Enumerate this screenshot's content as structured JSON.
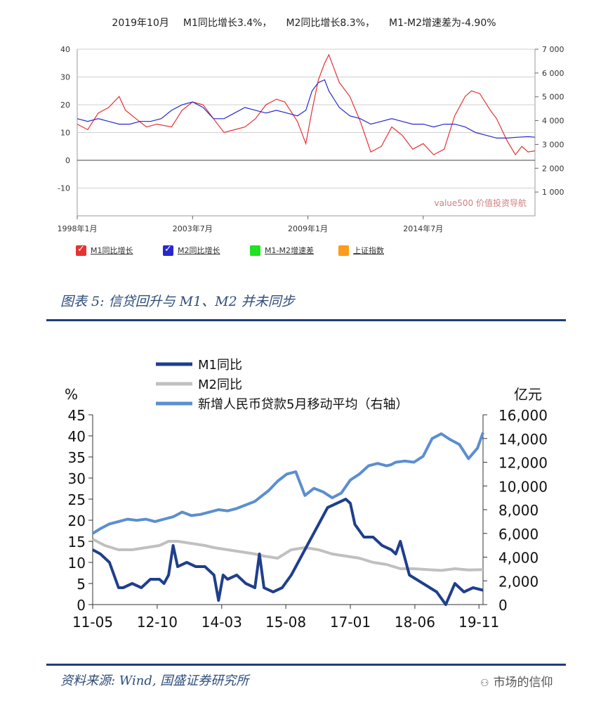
{
  "chart1_header": {
    "month": "2019年10月",
    "m1": "M1同比增长3.4%，",
    "m2": "M2同比增长8.3%，",
    "gap": "M1-M2增速差为-4.90%"
  },
  "legend1": {
    "items": [
      {
        "label": "M1同比增长",
        "color": "#e53232",
        "checked": true
      },
      {
        "label": "M2同比增长",
        "color": "#2828d0",
        "checked": true
      },
      {
        "label": "M1-M2增速差",
        "color": "#22e022",
        "checked": false
      },
      {
        "label": "上证指数",
        "color": "#ff9a1a",
        "checked": false
      }
    ]
  },
  "chart1_watermark": "value500 价值投资导航",
  "figure_title": "图表 5:  信贷回升与 M1、M2 并未同步",
  "source": "资料来源:  Wind, 国盛证券研究所",
  "footer_watermark": "市场的信仰",
  "chart_data": [
    {
      "type": "line",
      "title": "",
      "x_ticks": [
        "1998年1月",
        "2003年7月",
        "2009年1月",
        "2014年7月"
      ],
      "x_range": [
        1998.0,
        2019.83
      ],
      "ylim": [
        -20,
        40
      ],
      "y_ticks": [
        -10,
        0,
        10,
        20,
        30,
        40
      ],
      "ylim_right": [
        0,
        7000
      ],
      "y_ticks_right": [
        "1 000",
        "2 000",
        "3 000",
        "4 000",
        "5 000",
        "6 000",
        "7 000"
      ],
      "grid": true,
      "series": [
        {
          "name": "M1同比增长",
          "color": "#e53232",
          "x": [
            1998.0,
            1998.5,
            1999.0,
            1999.5,
            2000.0,
            2000.3,
            2000.8,
            2001.3,
            2001.8,
            2002.5,
            2003.0,
            2003.5,
            2004.0,
            2004.5,
            2005.0,
            2005.5,
            2006.0,
            2006.5,
            2007.0,
            2007.5,
            2007.9,
            2008.5,
            2008.9,
            2009.2,
            2009.5,
            2009.8,
            2010.0,
            2010.5,
            2011.0,
            2011.5,
            2012.0,
            2012.5,
            2013.0,
            2013.5,
            2014.0,
            2014.5,
            2015.0,
            2015.5,
            2016.0,
            2016.5,
            2016.8,
            2017.2,
            2017.7,
            2018.0,
            2018.5,
            2018.9,
            2019.2,
            2019.5,
            2019.83
          ],
          "y": [
            13,
            11,
            17,
            19,
            23,
            18,
            15,
            12,
            13,
            12,
            18,
            21,
            20,
            15,
            10,
            11,
            12,
            15,
            20,
            22,
            21,
            14,
            6,
            18,
            29,
            35,
            38,
            28,
            23,
            14,
            3,
            5,
            12,
            9,
            4,
            6,
            2,
            4,
            16,
            23,
            25,
            24,
            18,
            15,
            7,
            2,
            5,
            3,
            3.4
          ]
        },
        {
          "name": "M2同比增长",
          "color": "#2828d0",
          "x": [
            1998.0,
            1998.5,
            1999.0,
            1999.5,
            2000.0,
            2000.5,
            2001.0,
            2001.5,
            2002.0,
            2002.5,
            2003.0,
            2003.5,
            2004.0,
            2004.5,
            2005.0,
            2005.5,
            2006.0,
            2006.5,
            2007.0,
            2007.5,
            2008.0,
            2008.5,
            2008.9,
            2009.2,
            2009.5,
            2009.8,
            2010.0,
            2010.5,
            2011.0,
            2011.5,
            2012.0,
            2012.5,
            2013.0,
            2013.5,
            2014.0,
            2014.5,
            2015.0,
            2015.5,
            2016.0,
            2016.5,
            2017.0,
            2017.5,
            2018.0,
            2018.5,
            2019.0,
            2019.5,
            2019.83
          ],
          "y": [
            15,
            14,
            15,
            14,
            13,
            13,
            14,
            14,
            15,
            18,
            20,
            21,
            19,
            15,
            15,
            17,
            19,
            18,
            17,
            18,
            17,
            16,
            18,
            25,
            28,
            29,
            25,
            19,
            16,
            15,
            13,
            14,
            15,
            14,
            13,
            13,
            12,
            13,
            13,
            12,
            10,
            9,
            8,
            8,
            8.3,
            8.5,
            8.3
          ]
        }
      ]
    },
    {
      "type": "line",
      "title": "",
      "ylabel": "%",
      "ylabel_right": "亿元",
      "x_ticks": [
        "11-05",
        "12-10",
        "14-03",
        "15-08",
        "17-01",
        "18-06",
        "19-11"
      ],
      "x_range": [
        2011.33,
        2019.92
      ],
      "ylim": [
        0,
        45
      ],
      "y_ticks": [
        0,
        5,
        10,
        15,
        20,
        25,
        30,
        35,
        40,
        45
      ],
      "ylim_right": [
        0,
        16000
      ],
      "y_ticks_right": [
        "0",
        "2,000",
        "4,000",
        "6,000",
        "8,000",
        "10,000",
        "12,000",
        "14,000",
        "16,000"
      ],
      "grid": false,
      "legend_position": "top-left",
      "series": [
        {
          "name": "M1同比",
          "color": "#1f3f8c",
          "axis": "left",
          "x": [
            2011.33,
            2011.5,
            2011.7,
            2011.9,
            2012.0,
            2012.2,
            2012.4,
            2012.6,
            2012.8,
            2012.9,
            2013.0,
            2013.1,
            2013.2,
            2013.4,
            2013.6,
            2013.8,
            2014.0,
            2014.1,
            2014.2,
            2014.3,
            2014.5,
            2014.7,
            2014.9,
            2015.0,
            2015.1,
            2015.3,
            2015.5,
            2015.7,
            2015.9,
            2016.1,
            2016.3,
            2016.5,
            2016.7,
            2016.9,
            2017.0,
            2017.1,
            2017.3,
            2017.5,
            2017.7,
            2017.9,
            2018.0,
            2018.1,
            2018.3,
            2018.6,
            2018.9,
            2019.1,
            2019.3,
            2019.5,
            2019.7,
            2019.92
          ],
          "y": [
            13,
            12,
            10,
            4,
            4,
            5,
            4,
            6,
            6,
            5,
            7,
            14,
            9,
            10,
            9,
            9,
            7,
            1,
            7,
            6,
            7,
            5,
            4,
            12,
            4,
            3,
            4,
            7,
            11,
            15,
            19,
            23,
            24,
            25,
            24,
            19,
            16,
            16,
            14,
            13,
            12,
            15,
            7,
            5,
            3,
            0,
            5,
            3,
            4,
            3.4
          ]
        },
        {
          "name": "M2同比",
          "color": "#c0c0c0",
          "axis": "left",
          "x": [
            2011.33,
            2011.6,
            2011.9,
            2012.2,
            2012.5,
            2012.8,
            2013.0,
            2013.2,
            2013.5,
            2013.8,
            2014.0,
            2014.3,
            2014.6,
            2014.9,
            2015.1,
            2015.4,
            2015.7,
            2016.0,
            2016.3,
            2016.6,
            2016.9,
            2017.2,
            2017.5,
            2017.8,
            2018.1,
            2018.4,
            2018.7,
            2019.0,
            2019.3,
            2019.6,
            2019.92
          ],
          "y": [
            15.5,
            14,
            13,
            13,
            13.5,
            14,
            15,
            15,
            14.5,
            14,
            13.5,
            13,
            12.5,
            12,
            11.5,
            11,
            13,
            13.5,
            13,
            12,
            11.5,
            11,
            10,
            9.5,
            8.5,
            8.5,
            8.3,
            8.1,
            8.5,
            8.2,
            8.3
          ]
        },
        {
          "name": "新增人民币贷款5月移动平均（右轴）",
          "color": "#5b8ed0",
          "axis": "right",
          "x": [
            2011.33,
            2011.5,
            2011.7,
            2011.9,
            2012.1,
            2012.3,
            2012.5,
            2012.7,
            2012.9,
            2013.1,
            2013.3,
            2013.5,
            2013.7,
            2013.9,
            2014.1,
            2014.3,
            2014.5,
            2014.7,
            2014.9,
            2015.0,
            2015.2,
            2015.4,
            2015.6,
            2015.8,
            2016.0,
            2016.2,
            2016.4,
            2016.6,
            2016.8,
            2017.0,
            2017.2,
            2017.4,
            2017.6,
            2017.8,
            2017.9,
            2018.0,
            2018.2,
            2018.4,
            2018.6,
            2018.8,
            2019.0,
            2019.2,
            2019.4,
            2019.6,
            2019.8,
            2019.92
          ],
          "y": [
            6000,
            6400,
            6800,
            7000,
            7200,
            7100,
            7200,
            7000,
            7200,
            7400,
            7800,
            7500,
            7600,
            7800,
            8000,
            7900,
            8100,
            8400,
            8700,
            9000,
            9600,
            10400,
            11000,
            11200,
            9200,
            9800,
            9500,
            9000,
            9400,
            10500,
            11000,
            11700,
            11900,
            11700,
            11800,
            12000,
            12100,
            12000,
            12500,
            14000,
            14400,
            13900,
            13500,
            12300,
            13200,
            14500
          ]
        }
      ]
    }
  ]
}
